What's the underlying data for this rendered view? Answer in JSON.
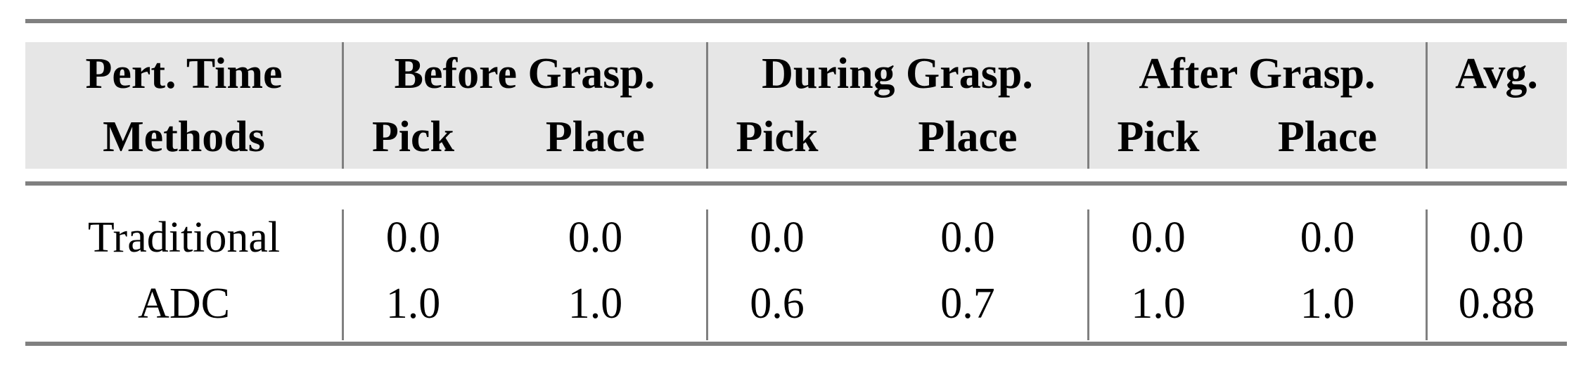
{
  "table": {
    "header_row1": [
      "Pert. Time",
      "Before Grasp.",
      "During Grasp.",
      "After Grasp.",
      "Avg."
    ],
    "header_row2": [
      "Methods",
      "Pick",
      "Place",
      "Pick",
      "Place",
      "Pick",
      "Place",
      ""
    ],
    "rows": [
      [
        "Traditional",
        "0.0",
        "0.0",
        "0.0",
        "0.0",
        "0.0",
        "0.0",
        "0.0"
      ],
      [
        "ADC",
        "1.0",
        "1.0",
        "0.6",
        "0.7",
        "1.0",
        "1.0",
        "0.88"
      ]
    ]
  },
  "colors": {
    "header_bg": "#e6e6e6",
    "rule": "#808080"
  }
}
